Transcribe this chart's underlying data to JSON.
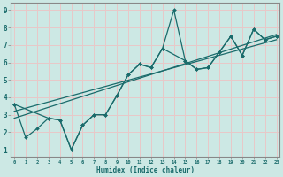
{
  "xlabel": "Humidex (Indice chaleur)",
  "bg_color": "#cce8e4",
  "grid_color": "#e8c8c8",
  "line_color": "#1a6b6b",
  "spine_color": "#888888",
  "xticks": [
    0,
    1,
    2,
    3,
    4,
    5,
    6,
    7,
    8,
    9,
    10,
    11,
    12,
    13,
    14,
    15,
    16,
    17,
    18,
    19,
    20,
    21,
    22,
    23
  ],
  "yticks": [
    1,
    2,
    3,
    4,
    5,
    6,
    7,
    8,
    9
  ],
  "xlim": [
    -0.3,
    23.3
  ],
  "ylim": [
    0.6,
    9.4
  ],
  "lines": [
    {
      "x": [
        0,
        1,
        2,
        3,
        4,
        5,
        6,
        7,
        8,
        9,
        10,
        11,
        12,
        13,
        14,
        15,
        16,
        17,
        18,
        19,
        20,
        21,
        22,
        23
      ],
      "y": [
        3.6,
        1.7,
        2.2,
        2.8,
        2.7,
        1.0,
        2.4,
        3.0,
        3.0,
        4.1,
        5.3,
        5.9,
        5.7,
        6.8,
        9.0,
        6.1,
        5.6,
        5.7,
        6.6,
        7.5,
        6.4,
        7.9,
        7.3,
        7.5
      ],
      "marker": true,
      "linewidth": 0.9
    },
    {
      "x": [
        0,
        3,
        4,
        5,
        6,
        7,
        8,
        9,
        10,
        11,
        12,
        13,
        15,
        16,
        17,
        18,
        19,
        20,
        21,
        22,
        23
      ],
      "y": [
        3.6,
        2.8,
        2.7,
        1.0,
        2.4,
        3.0,
        3.0,
        4.1,
        5.3,
        5.9,
        5.7,
        6.8,
        6.1,
        5.6,
        5.7,
        6.6,
        7.5,
        6.4,
        7.9,
        7.3,
        7.5
      ],
      "marker": true,
      "linewidth": 0.9
    },
    {
      "x": [
        0,
        23
      ],
      "y": [
        2.8,
        7.6
      ],
      "marker": false,
      "linewidth": 0.9
    },
    {
      "x": [
        0,
        23
      ],
      "y": [
        3.2,
        7.3
      ],
      "marker": false,
      "linewidth": 0.9
    }
  ]
}
